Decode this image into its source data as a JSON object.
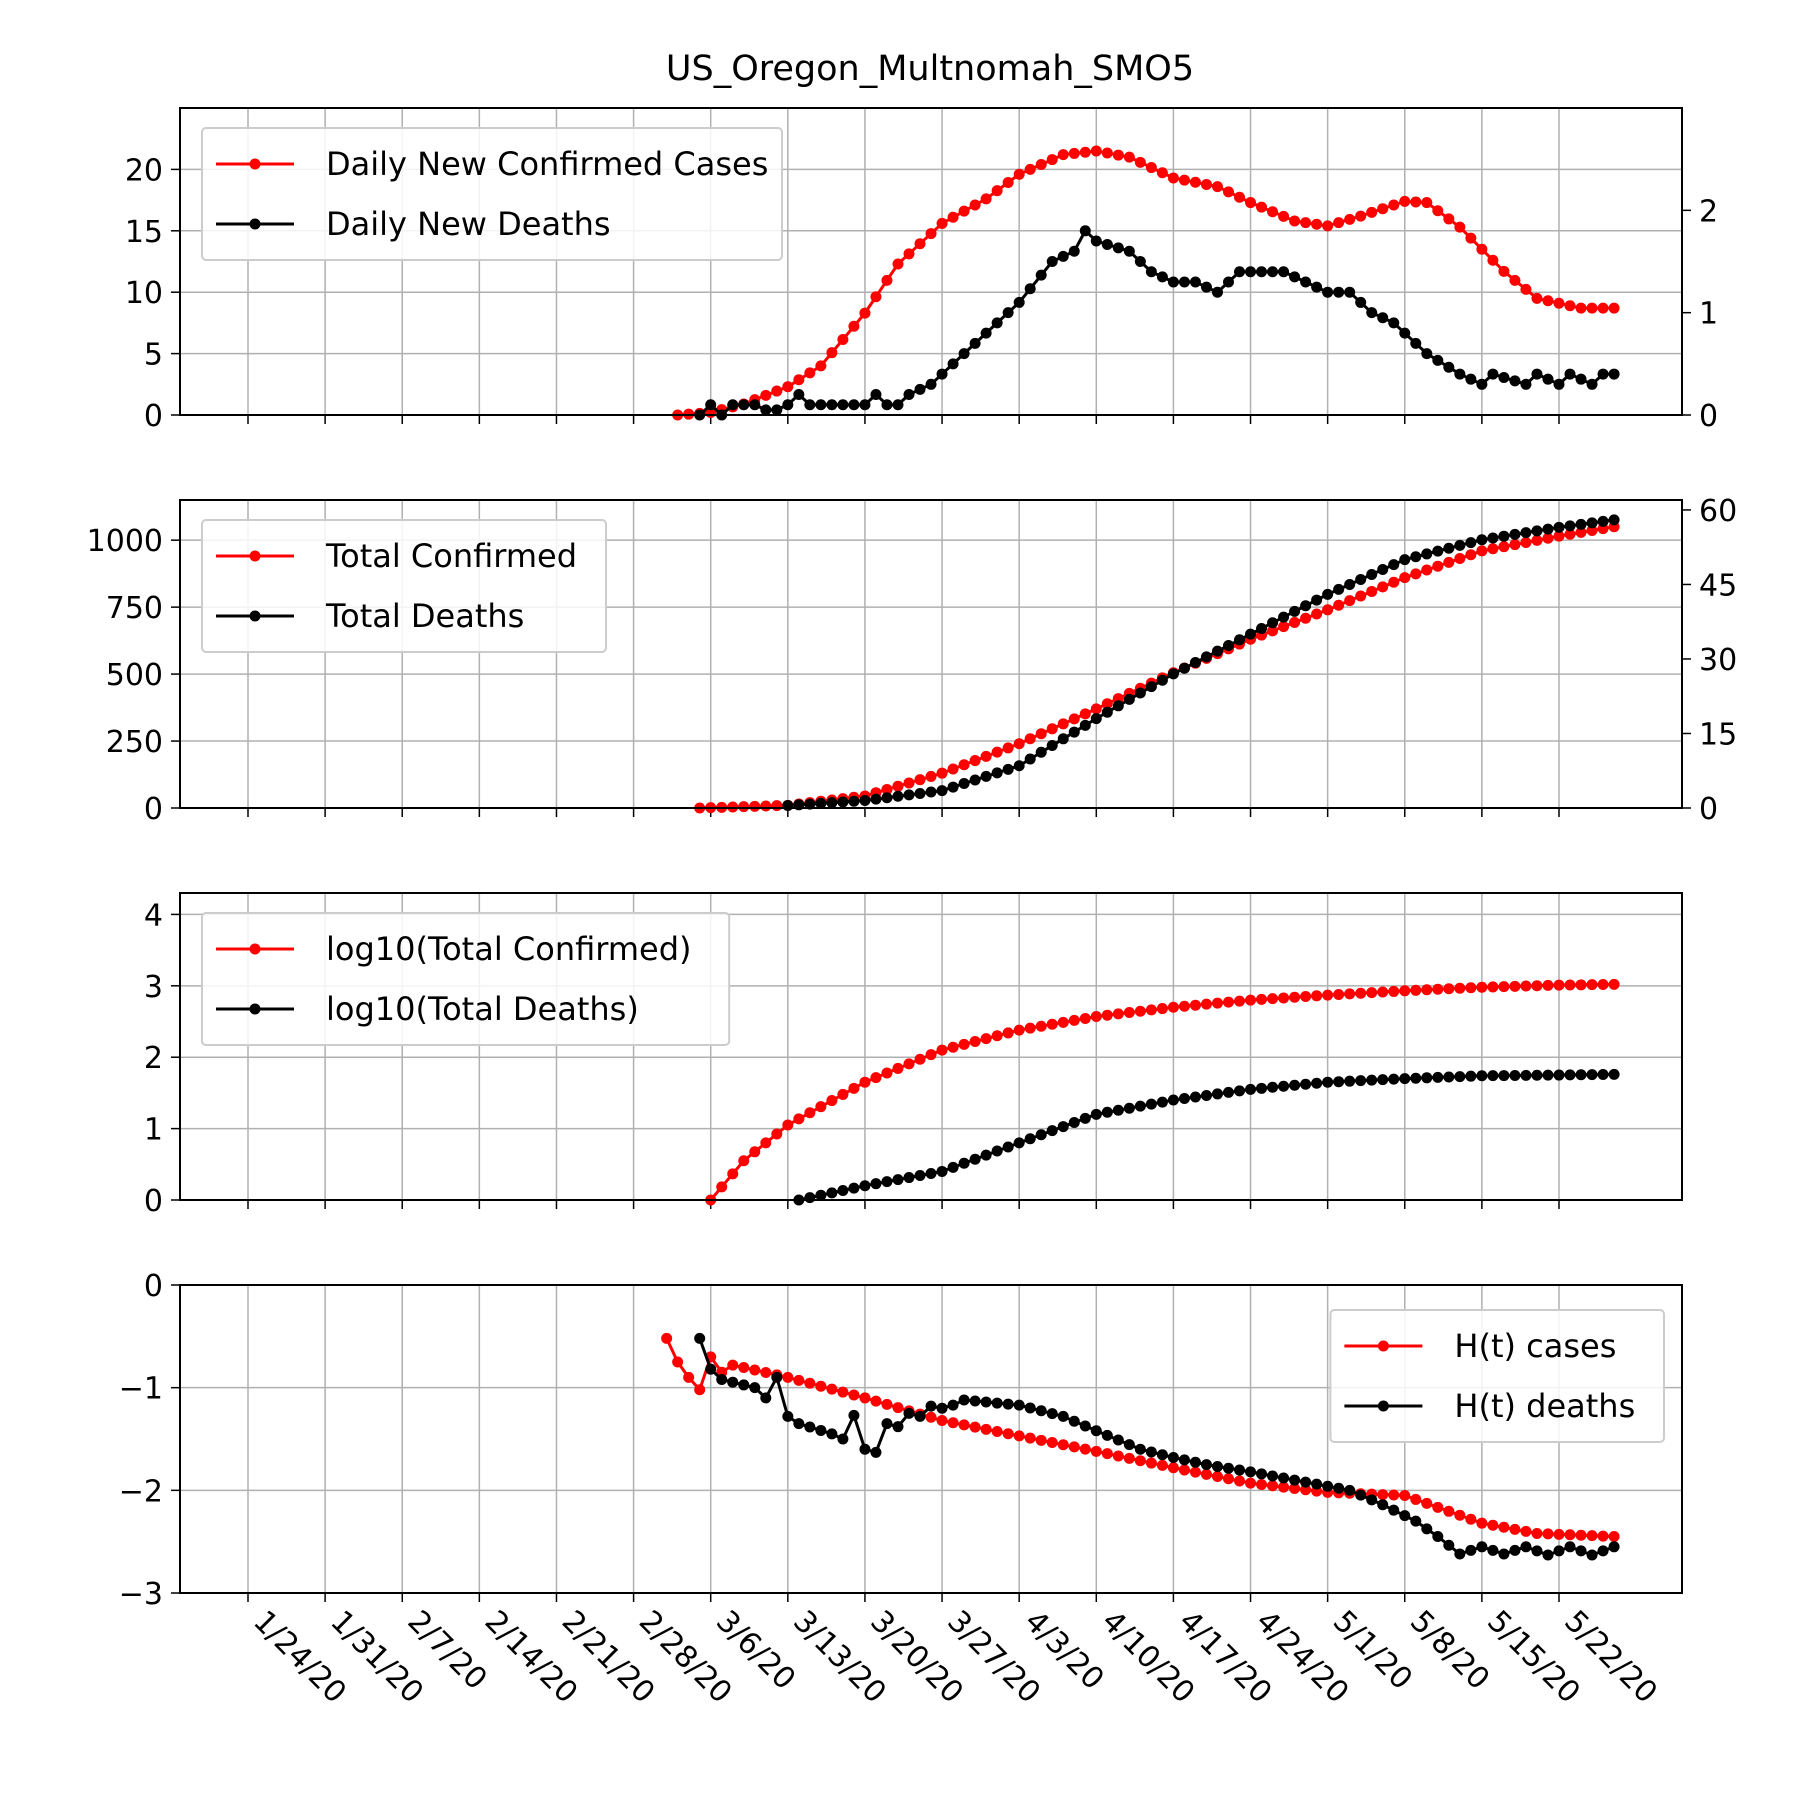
{
  "title": "US_Oregon_Multnomah_SMO5",
  "x_tick_labels": [
    "1/24/20",
    "1/31/20",
    "2/7/20",
    "2/14/20",
    "2/21/20",
    "2/28/20",
    "3/6/20",
    "3/13/20",
    "3/20/20",
    "3/27/20",
    "4/3/20",
    "4/10/20",
    "4/17/20",
    "4/24/20",
    "5/1/20",
    "5/8/20",
    "5/15/20",
    "5/22/20"
  ],
  "colors": {
    "cases": "#ff0000",
    "deaths": "#000000",
    "grid": "#b0b0b0"
  },
  "chart_data": [
    {
      "type": "line",
      "x": {
        "start": "1/22/20",
        "end": "5/27/20",
        "unit": "day"
      },
      "legend": {
        "placement": "top-left",
        "entries": [
          "Daily New Confirmed Cases",
          "Daily New Deaths"
        ]
      },
      "ylim": [
        0,
        25
      ],
      "y_ticks": [
        "0",
        "5",
        "10",
        "15",
        "20"
      ],
      "y2lim": [
        0,
        3
      ],
      "y2_ticks": [
        "0",
        "1",
        "2"
      ],
      "grid": true,
      "series": [
        {
          "name": "Daily New Confirmed Cases",
          "axis": "left",
          "color": "#ff0000",
          "keyframes": [
            [
              "3/3/20",
              0
            ],
            [
              "3/6/20",
              0.2
            ],
            [
              "3/9/20",
              0.9
            ],
            [
              "3/13/20",
              2.3
            ],
            [
              "3/16/20",
              4.0
            ],
            [
              "3/20/20",
              8.3
            ],
            [
              "3/23/20",
              12.3
            ],
            [
              "3/27/20",
              15.6
            ],
            [
              "3/31/20",
              17.6
            ],
            [
              "4/3/20",
              19.6
            ],
            [
              "4/7/20",
              21.2
            ],
            [
              "4/10/20",
              21.5
            ],
            [
              "4/13/20",
              21.0
            ],
            [
              "4/17/20",
              19.3
            ],
            [
              "4/21/20",
              18.6
            ],
            [
              "4/24/20",
              17.3
            ],
            [
              "4/28/20",
              15.8
            ],
            [
              "5/1/20",
              15.4
            ],
            [
              "5/4/20",
              16.2
            ],
            [
              "5/8/20",
              17.4
            ],
            [
              "5/10/20",
              17.3
            ],
            [
              "5/13/20",
              15.3
            ],
            [
              "5/17/20",
              11.7
            ],
            [
              "5/20/20",
              9.5
            ],
            [
              "5/24/20",
              8.7
            ],
            [
              "5/27/20",
              8.7
            ]
          ]
        },
        {
          "name": "Daily New Deaths",
          "axis": "right",
          "color": "#000000",
          "keyframes": [
            [
              "3/5/20",
              0
            ],
            [
              "3/6/20",
              0.1
            ],
            [
              "3/7/20",
              0
            ],
            [
              "3/8/20",
              0.1
            ],
            [
              "3/9/20",
              0.1
            ],
            [
              "3/10/20",
              0.1
            ],
            [
              "3/11/20",
              0.05
            ],
            [
              "3/12/20",
              0.05
            ],
            [
              "3/13/20",
              0.1
            ],
            [
              "3/14/20",
              0.2
            ],
            [
              "3/15/20",
              0.1
            ],
            [
              "3/20/20",
              0.1
            ],
            [
              "3/21/20",
              0.2
            ],
            [
              "3/22/20",
              0.1
            ],
            [
              "3/23/20",
              0.1
            ],
            [
              "3/24/20",
              0.2
            ],
            [
              "3/26/20",
              0.3
            ],
            [
              "3/28/20",
              0.5
            ],
            [
              "3/30/20",
              0.7
            ],
            [
              "4/1/20",
              0.9
            ],
            [
              "4/3/20",
              1.1
            ],
            [
              "4/6/20",
              1.5
            ],
            [
              "4/8/20",
              1.6
            ],
            [
              "4/9/20",
              1.8
            ],
            [
              "4/10/20",
              1.7
            ],
            [
              "4/13/20",
              1.6
            ],
            [
              "4/15/20",
              1.4
            ],
            [
              "4/17/20",
              1.3
            ],
            [
              "4/19/20",
              1.3
            ],
            [
              "4/21/20",
              1.2
            ],
            [
              "4/23/20",
              1.4
            ],
            [
              "4/25/20",
              1.4
            ],
            [
              "4/27/20",
              1.4
            ],
            [
              "4/29/20",
              1.3
            ],
            [
              "5/1/20",
              1.2
            ],
            [
              "5/3/20",
              1.2
            ],
            [
              "5/5/20",
              1.0
            ],
            [
              "5/7/20",
              0.9
            ],
            [
              "5/10/20",
              0.6
            ],
            [
              "5/13/20",
              0.4
            ],
            [
              "5/15/20",
              0.3
            ],
            [
              "5/16/20",
              0.4
            ],
            [
              "5/19/20",
              0.3
            ],
            [
              "5/20/20",
              0.4
            ],
            [
              "5/22/20",
              0.3
            ],
            [
              "5/23/20",
              0.4
            ],
            [
              "5/25/20",
              0.3
            ],
            [
              "5/26/20",
              0.4
            ],
            [
              "5/27/20",
              0.4
            ]
          ]
        }
      ]
    },
    {
      "type": "line",
      "x": {
        "start": "1/22/20",
        "end": "5/27/20",
        "unit": "day"
      },
      "legend": {
        "placement": "top-left",
        "entries": [
          "Total Confirmed",
          "Total Deaths"
        ]
      },
      "ylim": [
        0,
        1150
      ],
      "y_ticks": [
        "0",
        "250",
        "500",
        "750",
        "1000"
      ],
      "y2lim": [
        0,
        62
      ],
      "y2_ticks": [
        "0",
        "15",
        "30",
        "45",
        "60"
      ],
      "grid": true,
      "series": [
        {
          "name": "Total Confirmed",
          "axis": "left",
          "color": "#ff0000",
          "keyframes": [
            [
              "3/5/20",
              0
            ],
            [
              "3/13/20",
              10
            ],
            [
              "3/20/20",
              45
            ],
            [
              "3/27/20",
              130
            ],
            [
              "4/3/20",
              240
            ],
            [
              "4/10/20",
              370
            ],
            [
              "4/17/20",
              505
            ],
            [
              "4/24/20",
              630
            ],
            [
              "5/1/20",
              740
            ],
            [
              "5/8/20",
              860
            ],
            [
              "5/15/20",
              960
            ],
            [
              "5/22/20",
              1015
            ],
            [
              "5/27/20",
              1050
            ]
          ]
        },
        {
          "name": "Total Deaths",
          "axis": "right",
          "color": "#000000",
          "keyframes": [
            [
              "3/13/20",
              0.5
            ],
            [
              "3/20/20",
              1.5
            ],
            [
              "3/27/20",
              3.5
            ],
            [
              "4/3/20",
              8.5
            ],
            [
              "4/10/20",
              18
            ],
            [
              "4/17/20",
              27
            ],
            [
              "4/24/20",
              35
            ],
            [
              "5/1/20",
              43
            ],
            [
              "5/8/20",
              50
            ],
            [
              "5/15/20",
              54
            ],
            [
              "5/22/20",
              56.5
            ],
            [
              "5/27/20",
              58
            ]
          ]
        }
      ]
    },
    {
      "type": "line",
      "x": {
        "start": "1/22/20",
        "end": "5/27/20",
        "unit": "day"
      },
      "legend": {
        "placement": "top-left",
        "entries": [
          "log10(Total Confirmed)",
          "log10(Total Deaths)"
        ]
      },
      "ylim": [
        0,
        4.3
      ],
      "y_ticks": [
        "0",
        "1",
        "2",
        "3",
        "4"
      ],
      "grid": true,
      "series": [
        {
          "name": "log10(Total Confirmed)",
          "color": "#ff0000",
          "keyframes": [
            [
              "3/6/20",
              0.0
            ],
            [
              "3/9/20",
              0.55
            ],
            [
              "3/13/20",
              1.05
            ],
            [
              "3/20/20",
              1.65
            ],
            [
              "3/27/20",
              2.1
            ],
            [
              "4/3/20",
              2.38
            ],
            [
              "4/10/20",
              2.57
            ],
            [
              "4/17/20",
              2.7
            ],
            [
              "4/24/20",
              2.8
            ],
            [
              "5/1/20",
              2.87
            ],
            [
              "5/8/20",
              2.93
            ],
            [
              "5/15/20",
              2.98
            ],
            [
              "5/22/20",
              3.01
            ],
            [
              "5/27/20",
              3.02
            ]
          ]
        },
        {
          "name": "log10(Total Deaths)",
          "color": "#000000",
          "keyframes": [
            [
              "3/14/20",
              0.0
            ],
            [
              "3/20/20",
              0.2
            ],
            [
              "3/27/20",
              0.4
            ],
            [
              "4/3/20",
              0.8
            ],
            [
              "4/10/20",
              1.2
            ],
            [
              "4/17/20",
              1.4
            ],
            [
              "4/24/20",
              1.55
            ],
            [
              "5/1/20",
              1.65
            ],
            [
              "5/8/20",
              1.7
            ],
            [
              "5/15/20",
              1.74
            ],
            [
              "5/22/20",
              1.75
            ],
            [
              "5/27/20",
              1.76
            ]
          ]
        }
      ]
    },
    {
      "type": "line",
      "x": {
        "start": "1/22/20",
        "end": "5/27/20",
        "unit": "day"
      },
      "legend": {
        "placement": "top-right",
        "entries": [
          "H(t) cases",
          "H(t) deaths"
        ]
      },
      "ylim": [
        -3,
        0
      ],
      "y_ticks": [
        "0",
        "−1",
        "−2",
        "−3"
      ],
      "grid": true,
      "series": [
        {
          "name": "H(t) cases",
          "color": "#ff0000",
          "keyframes": [
            [
              "3/2/20",
              -0.52
            ],
            [
              "3/3/20",
              -0.75
            ],
            [
              "3/4/20",
              -0.9
            ],
            [
              "3/5/20",
              -1.02
            ],
            [
              "3/6/20",
              -0.7
            ],
            [
              "3/7/20",
              -0.85
            ],
            [
              "3/8/20",
              -0.78
            ],
            [
              "3/13/20",
              -0.9
            ],
            [
              "3/20/20",
              -1.1
            ],
            [
              "3/27/20",
              -1.32
            ],
            [
              "4/3/20",
              -1.47
            ],
            [
              "4/10/20",
              -1.62
            ],
            [
              "4/17/20",
              -1.78
            ],
            [
              "4/24/20",
              -1.93
            ],
            [
              "5/1/20",
              -2.02
            ],
            [
              "5/8/20",
              -2.05
            ],
            [
              "5/15/20",
              -2.32
            ],
            [
              "5/20/20",
              -2.42
            ],
            [
              "5/27/20",
              -2.45
            ]
          ]
        },
        {
          "name": "H(t) deaths",
          "color": "#000000",
          "keyframes": [
            [
              "3/5/20",
              -0.52
            ],
            [
              "3/6/20",
              -0.82
            ],
            [
              "3/7/20",
              -0.92
            ],
            [
              "3/10/20",
              -1.0
            ],
            [
              "3/11/20",
              -1.1
            ],
            [
              "3/12/20",
              -0.9
            ],
            [
              "3/13/20",
              -1.28
            ],
            [
              "3/14/20",
              -1.35
            ],
            [
              "3/17/20",
              -1.45
            ],
            [
              "3/18/20",
              -1.5
            ],
            [
              "3/19/20",
              -1.27
            ],
            [
              "3/20/20",
              -1.6
            ],
            [
              "3/21/20",
              -1.63
            ],
            [
              "3/22/20",
              -1.35
            ],
            [
              "3/23/20",
              -1.38
            ],
            [
              "3/24/20",
              -1.25
            ],
            [
              "3/25/20",
              -1.28
            ],
            [
              "3/26/20",
              -1.18
            ],
            [
              "3/27/20",
              -1.2
            ],
            [
              "3/28/20",
              -1.17
            ],
            [
              "3/29/20",
              -1.12
            ],
            [
              "4/3/20",
              -1.17
            ],
            [
              "4/7/20",
              -1.28
            ],
            [
              "4/10/20",
              -1.42
            ],
            [
              "4/14/20",
              -1.6
            ],
            [
              "4/17/20",
              -1.68
            ],
            [
              "4/20/20",
              -1.75
            ],
            [
              "4/24/20",
              -1.82
            ],
            [
              "4/28/20",
              -1.9
            ],
            [
              "5/1/20",
              -1.96
            ],
            [
              "5/3/20",
              -2.0
            ],
            [
              "5/6/20",
              -2.14
            ],
            [
              "5/9/20",
              -2.3
            ],
            [
              "5/11/20",
              -2.45
            ],
            [
              "5/13/20",
              -2.62
            ],
            [
              "5/15/20",
              -2.55
            ],
            [
              "5/17/20",
              -2.62
            ],
            [
              "5/19/20",
              -2.55
            ],
            [
              "5/21/20",
              -2.63
            ],
            [
              "5/23/20",
              -2.55
            ],
            [
              "5/25/20",
              -2.63
            ],
            [
              "5/27/20",
              -2.55
            ]
          ]
        }
      ]
    }
  ]
}
